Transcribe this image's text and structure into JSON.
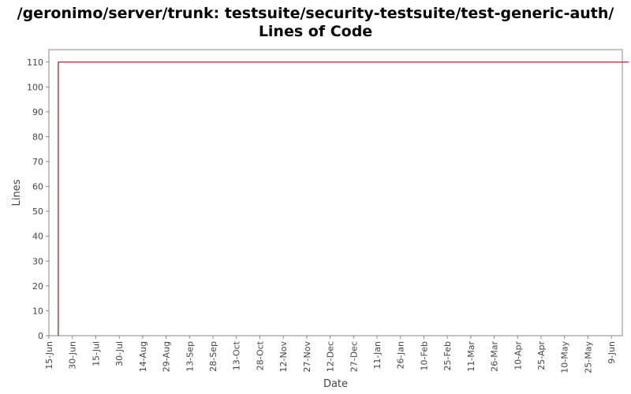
{
  "title": "/geronimo/server/trunk: testsuite/security-testsuite/test-generic-auth/",
  "subtitle": "Lines of Code",
  "chart_data": {
    "type": "line",
    "xlabel": "Date",
    "ylabel": "Lines",
    "ylim": [
      0,
      115
    ],
    "yticks": [
      0,
      10,
      20,
      30,
      40,
      50,
      60,
      70,
      80,
      90,
      100,
      110
    ],
    "xticks": [
      "15-Jun",
      "30-Jun",
      "15-Jul",
      "30-Jul",
      "14-Aug",
      "29-Aug",
      "13-Sep",
      "28-Sep",
      "13-Oct",
      "28-Oct",
      "12-Nov",
      "27-Nov",
      "12-Dec",
      "27-Dec",
      "11-Jan",
      "26-Jan",
      "10-Feb",
      "25-Feb",
      "11-Mar",
      "26-Mar",
      "10-Apr",
      "25-Apr",
      "10-May",
      "25-May",
      "9-Jun"
    ],
    "xrange": [
      "15-Jun",
      "17-Jun(+1y)"
    ],
    "grid": false,
    "series": [
      {
        "color": "#8b1a1a",
        "points": [
          {
            "x": "21-Jun",
            "y": 0
          },
          {
            "x": "21-Jun",
            "y": 110
          },
          {
            "x": "21-Jun(+1y)",
            "y": 110
          }
        ]
      }
    ]
  }
}
